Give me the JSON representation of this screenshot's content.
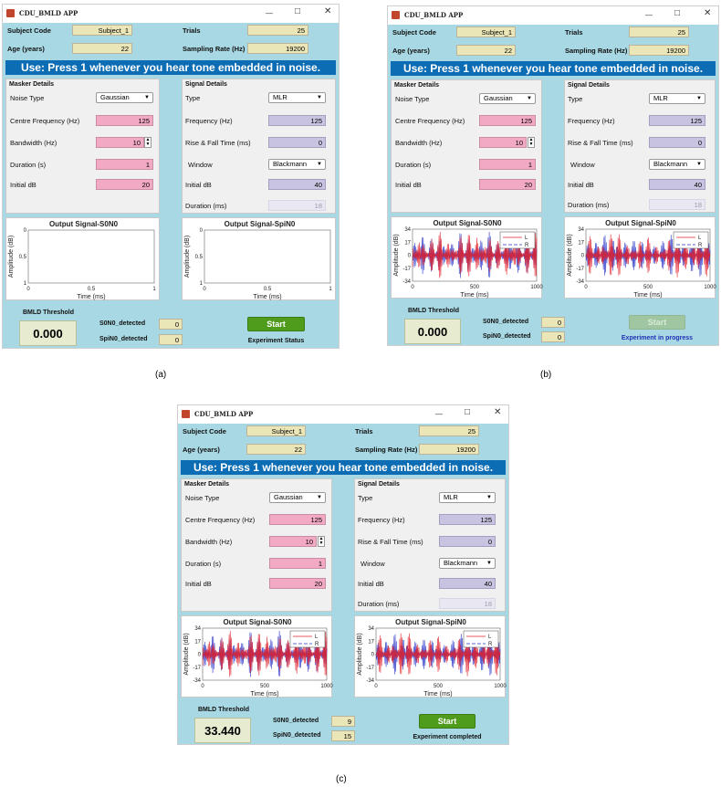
{
  "screens": [
    {
      "caption": "(a)",
      "window_title": "CDU_BMLD APP",
      "subject_code_label": "Subject Code",
      "subject_code_value": "Subject_1",
      "trials_label": "Trials",
      "trials_value": "25",
      "age_label": "Age (years)",
      "age_value": "22",
      "sampling_label": "Sampling Rate (Hz)",
      "sampling_value": "19200",
      "banner": "Use: Press 1 whenever you hear tone embedded in noise.",
      "masker": {
        "title": "Masker Details",
        "noise_type_label": "Noise Type",
        "noise_type_value": "Gaussian",
        "centre_freq_label": "Centre Frequency (Hz)",
        "centre_freq_value": "125",
        "bandwidth_label": "Bandwidth (Hz)",
        "bandwidth_value": "10",
        "duration_label": "Duration (s)",
        "duration_value": "1",
        "initial_db_label": "Initial dB",
        "initial_db_value": "20"
      },
      "signal": {
        "title": "Signal Details",
        "type_label": "Type",
        "type_value": "MLR",
        "frequency_label": "Frequency (Hz)",
        "frequency_value": "125",
        "rise_fall_label": "Rise & Fall Time (ms)",
        "rise_fall_value": "0",
        "window_label": "Window",
        "window_value": "Blackmann",
        "initial_db_label": "Initial dB",
        "initial_db_value": "40",
        "duration_label": "Duration (ms)",
        "duration_value": "18"
      },
      "plot1": {
        "title": "Output Signal-S0N0",
        "ylabel": "Amplitude (dB)",
        "xlabel": "Time (ms)",
        "yticks": [
          "0",
          "0.5",
          "1"
        ],
        "xticks": [
          "0",
          "0.5",
          "1"
        ],
        "has_signal": false
      },
      "plot2": {
        "title": "Output Signal-SpiN0",
        "ylabel": "Amplitude (dB)",
        "xlabel": "Time (ms)",
        "yticks": [
          "0",
          "0.5",
          "1"
        ],
        "xticks": [
          "0",
          "0.5",
          "1"
        ],
        "has_signal": false
      },
      "threshold_label": "BMLD Threshold",
      "threshold_value": "0.000",
      "s0n0_label": "S0N0_detected",
      "s0n0_value": "0",
      "spin0_label": "SpiN0_detected",
      "spin0_value": "0",
      "start_label": "Start",
      "start_enabled": true,
      "status_text": "Experiment Status",
      "status_color": "#111111"
    },
    {
      "caption": "(b)",
      "window_title": "CDU_BMLD APP",
      "subject_code_label": "Subject Code",
      "subject_code_value": "Subject_1",
      "trials_label": "Trials",
      "trials_value": "25",
      "age_label": "Age (years)",
      "age_value": "22",
      "sampling_label": "Sampling Rate (Hz)",
      "sampling_value": "19200",
      "banner": "Use: Press 1 whenever you hear tone embedded in noise.",
      "masker": {
        "title": "Masker Details",
        "noise_type_label": "Noise Type",
        "noise_type_value": "Gaussian",
        "centre_freq_label": "Centre Frequency (Hz)",
        "centre_freq_value": "125",
        "bandwidth_label": "Bandwidth (Hz)",
        "bandwidth_value": "10",
        "duration_label": "Duration (s)",
        "duration_value": "1",
        "initial_db_label": "Initial dB",
        "initial_db_value": "20"
      },
      "signal": {
        "title": "Signal Details",
        "type_label": "Type",
        "type_value": "MLR",
        "frequency_label": "Frequency (Hz)",
        "frequency_value": "125",
        "rise_fall_label": "Rise & Fall Time (ms)",
        "rise_fall_value": "0",
        "window_label": "Window",
        "window_value": "Blackmann",
        "initial_db_label": "Initial dB",
        "initial_db_value": "40",
        "duration_label": "Duration (ms)",
        "duration_value": "18"
      },
      "plot1": {
        "title": "Output Signal-S0N0",
        "ylabel": "Amplitude (dB)",
        "xlabel": "Time (ms)",
        "yticks": [
          "34",
          "17",
          "0",
          "-17",
          "-34"
        ],
        "xticks": [
          "0",
          "500",
          "1000"
        ],
        "has_signal": true,
        "legend": [
          "L",
          "R"
        ]
      },
      "plot2": {
        "title": "Output Signal-SpiN0",
        "ylabel": "Amplitude (dB)",
        "xlabel": "Time (ms)",
        "yticks": [
          "34",
          "17",
          "0",
          "-17",
          "-34"
        ],
        "xticks": [
          "0",
          "500",
          "1000"
        ],
        "has_signal": true,
        "legend": [
          "L",
          "R"
        ]
      },
      "threshold_label": "BMLD Threshold",
      "threshold_value": "0.000",
      "s0n0_label": "S0N0_detected",
      "s0n0_value": "0",
      "spin0_label": "SpiN0_detected",
      "spin0_value": "0",
      "start_label": "Start",
      "start_enabled": false,
      "status_text": "Experiment in progress",
      "status_color": "#1f33b5"
    },
    {
      "caption": "(c)",
      "window_title": "CDU_BMLD APP",
      "subject_code_label": "Subject Code",
      "subject_code_value": "Subject_1",
      "trials_label": "Trials",
      "trials_value": "25",
      "age_label": "Age (years)",
      "age_value": "22",
      "sampling_label": "Sampling Rate (Hz)",
      "sampling_value": "19200",
      "banner": "Use: Press 1 whenever you hear tone embedded in noise.",
      "masker": {
        "title": "Masker Details",
        "noise_type_label": "Noise Type",
        "noise_type_value": "Gaussian",
        "centre_freq_label": "Centre Frequency (Hz)",
        "centre_freq_value": "125",
        "bandwidth_label": "Bandwidth (Hz)",
        "bandwidth_value": "10",
        "duration_label": "Duration (s)",
        "duration_value": "1",
        "initial_db_label": "Initial dB",
        "initial_db_value": "20"
      },
      "signal": {
        "title": "Signal Details",
        "type_label": "Type",
        "type_value": "MLR",
        "frequency_label": "Frequency (Hz)",
        "frequency_value": "125",
        "rise_fall_label": "Rise & Fall Time (ms)",
        "rise_fall_value": "0",
        "window_label": "Window",
        "window_value": "Blackmann",
        "initial_db_label": "Initial dB",
        "initial_db_value": "40",
        "duration_label": "Duration (ms)",
        "duration_value": "18"
      },
      "plot1": {
        "title": "Output Signal-S0N0",
        "ylabel": "Amplitude (dB)",
        "xlabel": "Time (ms)",
        "yticks": [
          "34",
          "17",
          "0",
          "-17",
          "-34"
        ],
        "xticks": [
          "0",
          "500",
          "1000"
        ],
        "has_signal": true,
        "legend": [
          "L",
          "R"
        ]
      },
      "plot2": {
        "title": "Output Signal-SpiN0",
        "ylabel": "Amplitude (dB)",
        "xlabel": "Time (ms)",
        "yticks": [
          "34",
          "17",
          "0",
          "-17",
          "-34"
        ],
        "xticks": [
          "0",
          "500",
          "1000"
        ],
        "has_signal": true,
        "legend": [
          "L",
          "R"
        ]
      },
      "threshold_label": "BMLD Threshold",
      "threshold_value": "33.440",
      "s0n0_label": "S0N0_detected",
      "s0n0_value": "9",
      "spin0_label": "SpiN0_detected",
      "spin0_value": "15",
      "start_label": "Start",
      "start_enabled": true,
      "status_text": "Experiment completed",
      "status_color": "#111111"
    }
  ],
  "colors": {
    "background": "#a8d8e3",
    "banner": "#0c6cb4",
    "pink_field": "#f2a9c4",
    "purple_field": "#c7c3e0",
    "yellow_field": "#ebe6b8",
    "start_button": "#4f9b1c",
    "left_channel": "#e0202a",
    "right_channel": "#2a35c8"
  }
}
